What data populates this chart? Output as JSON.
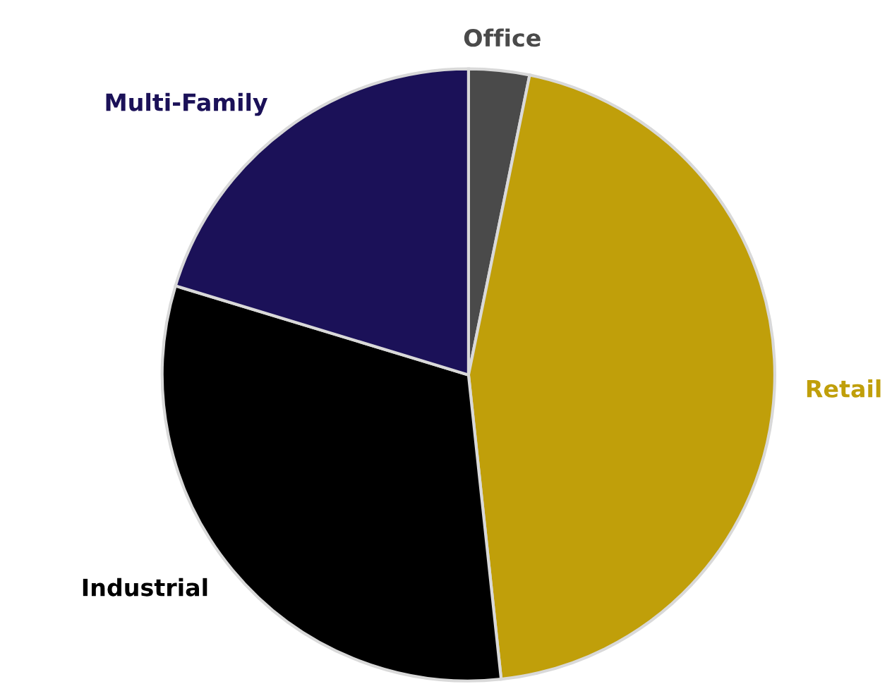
{
  "chart_data": {
    "type": "pie",
    "categories": [
      "Office",
      "Retail",
      "Industrial",
      "Multi-Family"
    ],
    "values": [
      3.2,
      45.1,
      31.4,
      20.3
    ],
    "colors": [
      "#4a4a4a",
      "#c09f0a",
      "#000000",
      "#1b1158"
    ],
    "legend": false
  }
}
